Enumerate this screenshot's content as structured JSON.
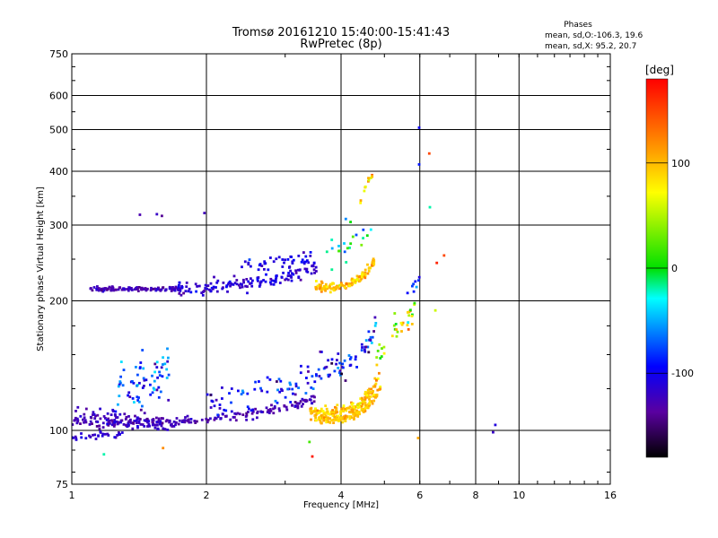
{
  "chart_data": {
    "type": "scatter",
    "title": "Tromsø 20161210 15:40:00-15:41:43",
    "subtitle": "RwPretec (8p)",
    "xlabel": "Frequency [MHz]",
    "ylabel": "Stationary phase Virtual Height [km]",
    "x_scale": "log",
    "y_scale": "log",
    "xlim": [
      1,
      16
    ],
    "ylim": [
      75,
      750
    ],
    "x_ticks": [
      1,
      2,
      4,
      6,
      8,
      10,
      16
    ],
    "x_tick_labels": [
      "1",
      "2",
      "4",
      "6",
      "8",
      "10",
      "16"
    ],
    "y_ticks": [
      75,
      100,
      200,
      300,
      400,
      500,
      600,
      750
    ],
    "y_tick_labels": [
      "75",
      "100",
      "200",
      "300",
      "400",
      "500",
      "600",
      "750"
    ],
    "grid": true,
    "phases_box": {
      "header": "Phases",
      "line_o": "mean, sd,O:-106.3, 19.6",
      "line_x": "mean, sd,X: 95.2, 20.7"
    },
    "colorbar": {
      "label": "[deg]",
      "range": [
        -180,
        180
      ],
      "ticks": [
        100,
        0,
        -100
      ],
      "tick_labels": [
        "100",
        "0",
        "-100"
      ]
    },
    "traces": [
      {
        "f0": 1.0,
        "f1": 3.5,
        "h0": 104,
        "h1": 118,
        "curve": 2.2,
        "n": 180,
        "phase": -128,
        "jitter": 0.012,
        "sd": 8
      },
      {
        "f0": 1.0,
        "f1": 1.7,
        "h0": 109,
        "h1": 103,
        "curve": 0,
        "n": 90,
        "phase": -125,
        "jitter": 0.025,
        "sd": 10
      },
      {
        "f0": 1.0,
        "f1": 1.3,
        "h0": 96,
        "h1": 99,
        "curve": 0,
        "n": 30,
        "phase": -115,
        "jitter": 0.01,
        "sd": 8
      },
      {
        "f0": 1.1,
        "f1": 1.75,
        "h0": 213,
        "h1": 213,
        "curve": 0,
        "n": 110,
        "phase": -128,
        "jitter": 0.006,
        "sd": 8
      },
      {
        "f0": 1.7,
        "f1": 3.55,
        "h0": 215,
        "h1": 236,
        "curve": 1.2,
        "n": 140,
        "phase": -115,
        "jitter": 0.02,
        "sd": 12
      },
      {
        "f0": 2.4,
        "f1": 3.5,
        "h0": 242,
        "h1": 252,
        "curve": 0,
        "n": 45,
        "phase": -105,
        "jitter": 0.02,
        "sd": 10
      },
      {
        "f0": 2.0,
        "f1": 3.5,
        "h0": 118,
        "h1": 135,
        "curve": 1.5,
        "n": 70,
        "phase": -95,
        "jitter": 0.045,
        "sd": 25
      },
      {
        "f0": 1.25,
        "f1": 1.65,
        "h0": 122,
        "h1": 140,
        "curve": 0,
        "n": 70,
        "phase": -80,
        "jitter": 0.08,
        "sd": 30
      },
      {
        "f0": 3.4,
        "f1": 4.85,
        "h0": 110,
        "h1": 133,
        "curve": 3.5,
        "n": 150,
        "phase": 95,
        "jitter": 0.015,
        "sd": 14
      },
      {
        "f0": 3.5,
        "f1": 4.9,
        "h0": 106,
        "h1": 126,
        "curve": 3.5,
        "n": 130,
        "phase": 100,
        "jitter": 0.01,
        "sd": 12
      },
      {
        "f0": 3.5,
        "f1": 4.75,
        "h0": 215,
        "h1": 250,
        "curve": 3,
        "n": 120,
        "phase": 98,
        "jitter": 0.012,
        "sd": 15
      },
      {
        "f0": 3.5,
        "f1": 4.8,
        "h0": 138,
        "h1": 175,
        "curve": 2,
        "n": 60,
        "phase": -100,
        "jitter": 0.04,
        "sd": 35
      },
      {
        "f0": 3.6,
        "f1": 4.7,
        "h0": 255,
        "h1": 300,
        "curve": 2,
        "n": 20,
        "phase": -20,
        "jitter": 0.035,
        "sd": 30
      },
      {
        "f0": 4.8,
        "f1": 5.85,
        "h0": 145,
        "h1": 190,
        "curve": 0,
        "n": 35,
        "phase": 40,
        "jitter": 0.04,
        "sd": 50
      },
      {
        "f0": 4.4,
        "f1": 4.7,
        "h0": 335,
        "h1": 400,
        "curve": 0,
        "n": 12,
        "phase": 90,
        "jitter": 0.015,
        "sd": 20
      },
      {
        "f0": 5.6,
        "f1": 6.0,
        "h0": 200,
        "h1": 235,
        "curve": 0,
        "n": 8,
        "phase": -80,
        "jitter": 0.03,
        "sd": 25
      }
    ],
    "isolated_points": [
      {
        "x": 1.42,
        "y": 317,
        "phase": -130
      },
      {
        "x": 1.55,
        "y": 318,
        "phase": -120
      },
      {
        "x": 1.59,
        "y": 315,
        "phase": -140
      },
      {
        "x": 1.98,
        "y": 320,
        "phase": -125
      },
      {
        "x": 5.98,
        "y": 505,
        "phase": -100
      },
      {
        "x": 5.98,
        "y": 415,
        "phase": -90
      },
      {
        "x": 6.3,
        "y": 440,
        "phase": 150
      },
      {
        "x": 6.32,
        "y": 330,
        "phase": -20
      },
      {
        "x": 6.55,
        "y": 245,
        "phase": 165
      },
      {
        "x": 6.8,
        "y": 255,
        "phase": 150
      },
      {
        "x": 6.5,
        "y": 190,
        "phase": 60
      },
      {
        "x": 8.85,
        "y": 103,
        "phase": -110
      },
      {
        "x": 8.75,
        "y": 99,
        "phase": -120
      },
      {
        "x": 3.45,
        "y": 87,
        "phase": 170
      },
      {
        "x": 3.4,
        "y": 94,
        "phase": 20
      },
      {
        "x": 1.6,
        "y": 91,
        "phase": 120
      },
      {
        "x": 1.18,
        "y": 88,
        "phase": -20
      },
      {
        "x": 5.95,
        "y": 96,
        "phase": 110
      },
      {
        "x": 4.2,
        "y": 305,
        "phase": 0
      },
      {
        "x": 4.1,
        "y": 310,
        "phase": -60
      }
    ]
  }
}
